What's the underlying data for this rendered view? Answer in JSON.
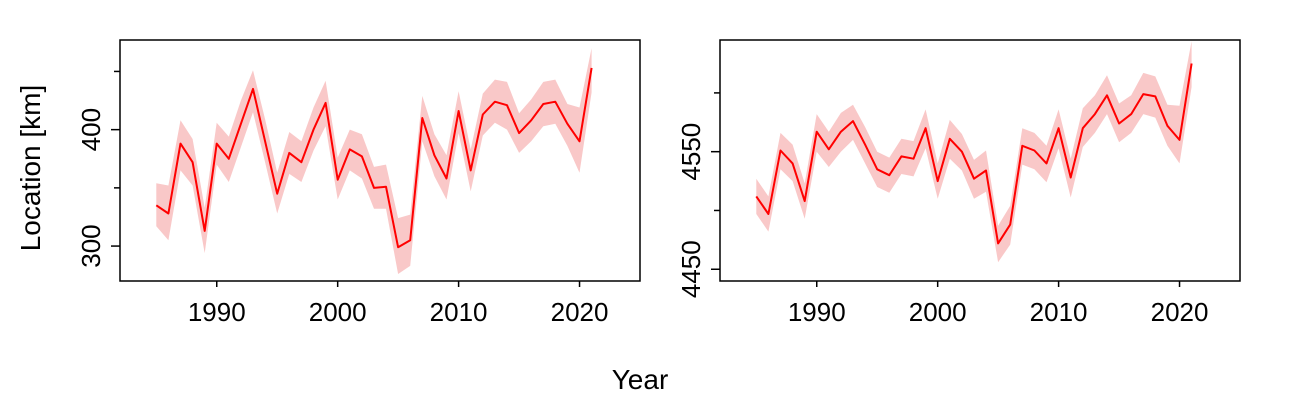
{
  "figure": {
    "xlabel": "Year",
    "ylabel": "Location [km]"
  },
  "chart_data": [
    {
      "type": "line",
      "xlim": [
        1982,
        2025
      ],
      "ylim": [
        270,
        477
      ],
      "x_ticks": [
        1990,
        2000,
        2010,
        2020
      ],
      "y_ticks": [
        300,
        400
      ],
      "x_minor_ticks": [],
      "y_minor_ticks": [
        350,
        450
      ],
      "band_color": "#f9c8c8",
      "line_color": "#ff0000",
      "series": [
        {
          "x": [
            1985,
            1986,
            1987,
            1988,
            1989,
            1990,
            1991,
            1992,
            1993,
            1994,
            1995,
            1996,
            1997,
            1998,
            1999,
            2000,
            2001,
            2002,
            2003,
            2004,
            2005,
            2006,
            2007,
            2008,
            2009,
            2010,
            2011,
            2012,
            2013,
            2014,
            2015,
            2016,
            2017,
            2018,
            2019,
            2020,
            2021
          ],
          "y": [
            335,
            328,
            388,
            372,
            313,
            388,
            375,
            405,
            435,
            390,
            345,
            380,
            372,
            400,
            423,
            357,
            383,
            377,
            350,
            351,
            299,
            305,
            410,
            378,
            358,
            416,
            365,
            413,
            424,
            421,
            397,
            408,
            422,
            424,
            405,
            390,
            453
          ],
          "lower": [
            317,
            305,
            365,
            352,
            294,
            370,
            355,
            385,
            415,
            372,
            328,
            362,
            355,
            382,
            403,
            340,
            365,
            358,
            332,
            332,
            276,
            283,
            390,
            360,
            340,
            397,
            347,
            395,
            406,
            400,
            380,
            390,
            403,
            405,
            386,
            363,
            432
          ],
          "upper": [
            354,
            352,
            408,
            392,
            333,
            406,
            394,
            425,
            451,
            409,
            363,
            398,
            390,
            419,
            442,
            376,
            400,
            396,
            368,
            370,
            324,
            327,
            429,
            396,
            378,
            433,
            383,
            431,
            443,
            441,
            414,
            426,
            441,
            443,
            422,
            419,
            470
          ]
        }
      ]
    },
    {
      "type": "line",
      "xlim": [
        1982,
        2025
      ],
      "ylim": [
        4440,
        4645
      ],
      "x_ticks": [
        1990,
        2000,
        2010,
        2020
      ],
      "y_ticks": [
        4450,
        4550
      ],
      "x_minor_ticks": [],
      "y_minor_ticks": [
        4500,
        4600
      ],
      "band_color": "#f9c8c8",
      "line_color": "#ff0000",
      "series": [
        {
          "x": [
            1985,
            1986,
            1987,
            1988,
            1989,
            1990,
            1991,
            1992,
            1993,
            1994,
            1995,
            1996,
            1997,
            1998,
            1999,
            2000,
            2001,
            2002,
            2003,
            2004,
            2005,
            2006,
            2007,
            2008,
            2009,
            2010,
            2011,
            2012,
            2013,
            2014,
            2015,
            2016,
            2017,
            2018,
            2019,
            2020,
            2021
          ],
          "y": [
            4512,
            4497,
            4551,
            4540,
            4508,
            4567,
            4552,
            4567,
            4576,
            4556,
            4535,
            4530,
            4546,
            4544,
            4570,
            4525,
            4561,
            4550,
            4527,
            4534,
            4472,
            4488,
            4555,
            4551,
            4540,
            4570,
            4528,
            4570,
            4582,
            4598,
            4574,
            4582,
            4599,
            4597,
            4572,
            4560,
            4625
          ],
          "lower": [
            4497,
            4482,
            4535,
            4525,
            4493,
            4550,
            4537,
            4550,
            4560,
            4540,
            4520,
            4515,
            4531,
            4529,
            4553,
            4510,
            4544,
            4534,
            4510,
            4516,
            4456,
            4471,
            4539,
            4535,
            4524,
            4553,
            4511,
            4554,
            4566,
            4582,
            4558,
            4566,
            4582,
            4579,
            4555,
            4540,
            4605
          ],
          "upper": [
            4527,
            4512,
            4566,
            4556,
            4523,
            4582,
            4567,
            4583,
            4590,
            4571,
            4550,
            4545,
            4561,
            4559,
            4586,
            4540,
            4577,
            4565,
            4543,
            4551,
            4487,
            4504,
            4570,
            4566,
            4555,
            4586,
            4544,
            4587,
            4598,
            4615,
            4591,
            4598,
            4617,
            4614,
            4590,
            4589,
            4644
          ]
        }
      ]
    }
  ]
}
